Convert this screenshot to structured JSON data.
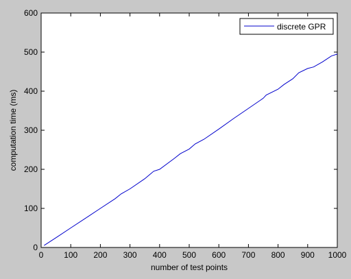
{
  "chart_data": {
    "type": "line",
    "xlabel": "number of test points",
    "ylabel": "computation time (ms)",
    "xlim": [
      0,
      1000
    ],
    "ylim": [
      0,
      600
    ],
    "xticks": [
      0,
      100,
      200,
      300,
      400,
      500,
      600,
      700,
      800,
      900,
      1000
    ],
    "yticks": [
      0,
      100,
      200,
      300,
      400,
      500,
      600
    ],
    "grid": false,
    "legend_position": "top-right",
    "series": [
      {
        "name": "discrete GPR",
        "color": "#0000cc",
        "x": [
          10,
          50,
          100,
          150,
          200,
          250,
          270,
          300,
          350,
          380,
          400,
          450,
          470,
          500,
          520,
          550,
          600,
          650,
          700,
          750,
          760,
          800,
          820,
          850,
          870,
          900,
          920,
          950,
          980,
          1000
        ],
        "y": [
          5,
          25,
          50,
          75,
          100,
          125,
          137,
          150,
          176,
          195,
          200,
          228,
          240,
          252,
          265,
          277,
          303,
          330,
          356,
          382,
          390,
          405,
          417,
          432,
          447,
          458,
          462,
          475,
          490,
          495
        ]
      }
    ]
  }
}
